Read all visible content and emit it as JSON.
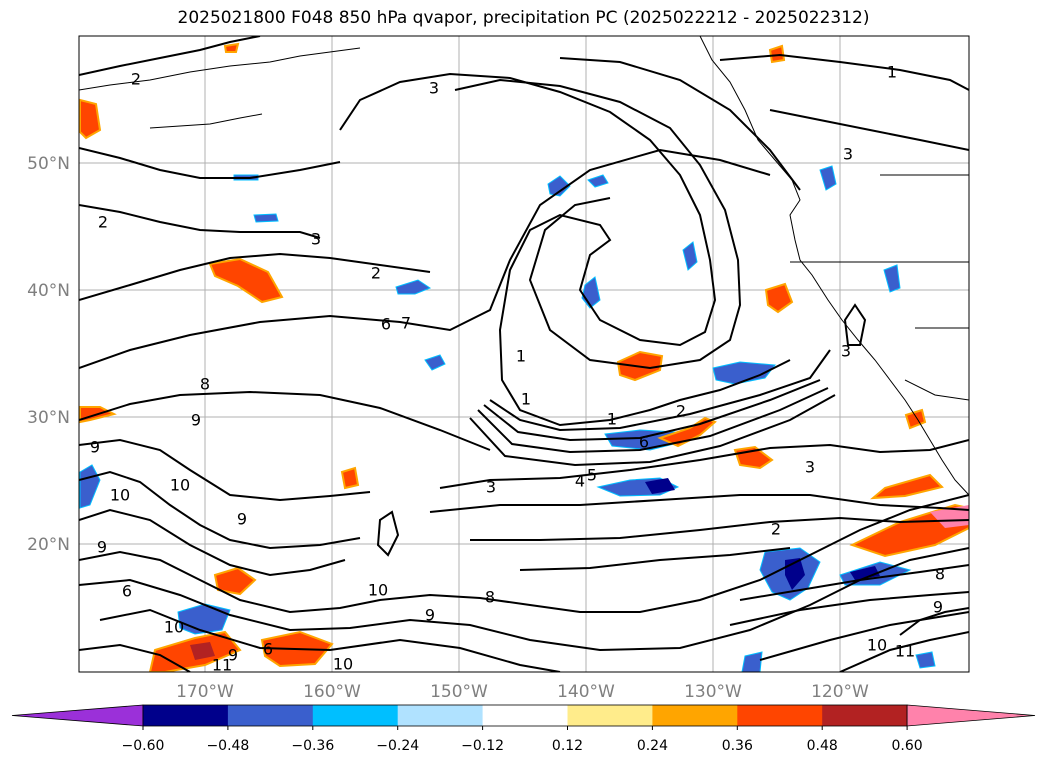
{
  "title": "2025021800 F048 850 hPa qvapor, precipitation PC (2025022212 - 2025022312)",
  "map": {
    "lat_labels": [
      {
        "value": 50,
        "label": "50°N"
      },
      {
        "value": 40,
        "label": "40°N"
      },
      {
        "value": 30,
        "label": "30°N"
      },
      {
        "value": 20,
        "label": "20°N"
      }
    ],
    "lon_labels": [
      {
        "value": -170,
        "label": "170°W"
      },
      {
        "value": -160,
        "label": "160°W"
      },
      {
        "value": -150,
        "label": "150°W"
      },
      {
        "value": -140,
        "label": "140°W"
      },
      {
        "value": -130,
        "label": "130°W"
      },
      {
        "value": -120,
        "label": "120°W"
      }
    ],
    "contour_labels": [
      {
        "text": "2"
      },
      {
        "text": "3"
      },
      {
        "text": "1"
      },
      {
        "text": "3"
      },
      {
        "text": "2"
      },
      {
        "text": "3"
      },
      {
        "text": "2"
      },
      {
        "text": "6"
      },
      {
        "text": "7"
      },
      {
        "text": "8"
      },
      {
        "text": "9"
      },
      {
        "text": "9"
      },
      {
        "text": "10"
      },
      {
        "text": "10"
      },
      {
        "text": "9"
      },
      {
        "text": "9"
      },
      {
        "text": "1"
      },
      {
        "text": "1"
      },
      {
        "text": "1"
      },
      {
        "text": "2"
      },
      {
        "text": "6"
      },
      {
        "text": "3"
      },
      {
        "text": "4"
      },
      {
        "text": "5"
      },
      {
        "text": "3"
      },
      {
        "text": "3"
      },
      {
        "text": "2"
      },
      {
        "text": "10"
      },
      {
        "text": "8"
      },
      {
        "text": "9"
      },
      {
        "text": "6"
      },
      {
        "text": "10"
      },
      {
        "text": "9"
      },
      {
        "text": "11"
      },
      {
        "text": "11"
      },
      {
        "text": "10"
      },
      {
        "text": "8"
      },
      {
        "text": "9"
      },
      {
        "text": "6"
      },
      {
        "text": "10"
      }
    ]
  },
  "colorbar": {
    "colors": [
      "#9b30d9",
      "#00008b",
      "#3a5fcd",
      "#00bfff",
      "#b0e2ff",
      "#ffffff",
      "#ffec8b",
      "#ffa500",
      "#ff4500",
      "#b22222",
      "#ff82ab"
    ],
    "tick_labels": [
      "−0.60",
      "−0.48",
      "−0.36",
      "−0.24",
      "−0.12",
      "0.12",
      "0.24",
      "0.36",
      "0.48",
      "0.60"
    ]
  }
}
